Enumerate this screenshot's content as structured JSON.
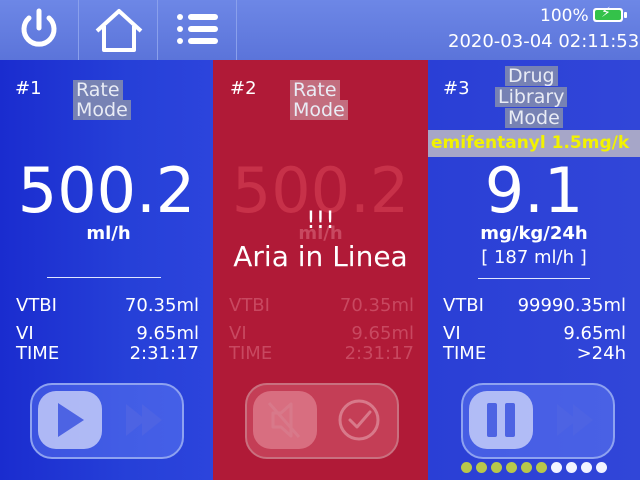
{
  "status": {
    "battery_pct": "100%",
    "datetime": "2020-03-04 02:11:53"
  },
  "channels": [
    {
      "num": "#1",
      "mode": [
        "Rate",
        "Mode"
      ],
      "rate": "500.2",
      "unit": "ml/h",
      "rows": [
        {
          "label": "VTBI",
          "value": "70.35ml"
        },
        {
          "label": "VI",
          "value": "9.65ml"
        },
        {
          "label": "TIME",
          "value": "2:31:17"
        }
      ]
    },
    {
      "num": "#2",
      "mode": [
        "Rate",
        "Mode"
      ],
      "rate": "500.2",
      "unit": "ml/h",
      "alarm_line1": "!!!",
      "alarm_line2": "Aria in Linea",
      "rows": [
        {
          "label": "VTBI",
          "value": "70.35ml"
        },
        {
          "label": "VI",
          "value": "9.65ml"
        },
        {
          "label": "TIME",
          "value": "2:31:17"
        }
      ]
    },
    {
      "num": "#3",
      "mode": [
        "Drug",
        "Library",
        "Mode"
      ],
      "drug": "emifentanyl 1.5mg/k",
      "rate": "9.1",
      "unit": "mg/kg/24h",
      "rate_ml": "[ 187 ml/h ]",
      "rows": [
        {
          "label": "VTBI",
          "value": "99990.35ml"
        },
        {
          "label": "VI",
          "value": "9.65ml"
        },
        {
          "label": "TIME",
          "value": ">24h"
        }
      ]
    }
  ],
  "colors": {
    "accent": "#2838c8",
    "alarm": "#b01a37",
    "battery": "#34c24a",
    "drug_text": "#f2f200"
  },
  "icons": [
    "power-icon",
    "home-icon",
    "menu-list-icon",
    "battery-icon",
    "play-icon",
    "fast-forward-icon",
    "mute-icon",
    "confirm-icon",
    "pause-icon"
  ],
  "page_dots": {
    "active": 6,
    "total": 10,
    "active_color": "#b8c84a",
    "inactive_color": "#f2f4ff"
  }
}
